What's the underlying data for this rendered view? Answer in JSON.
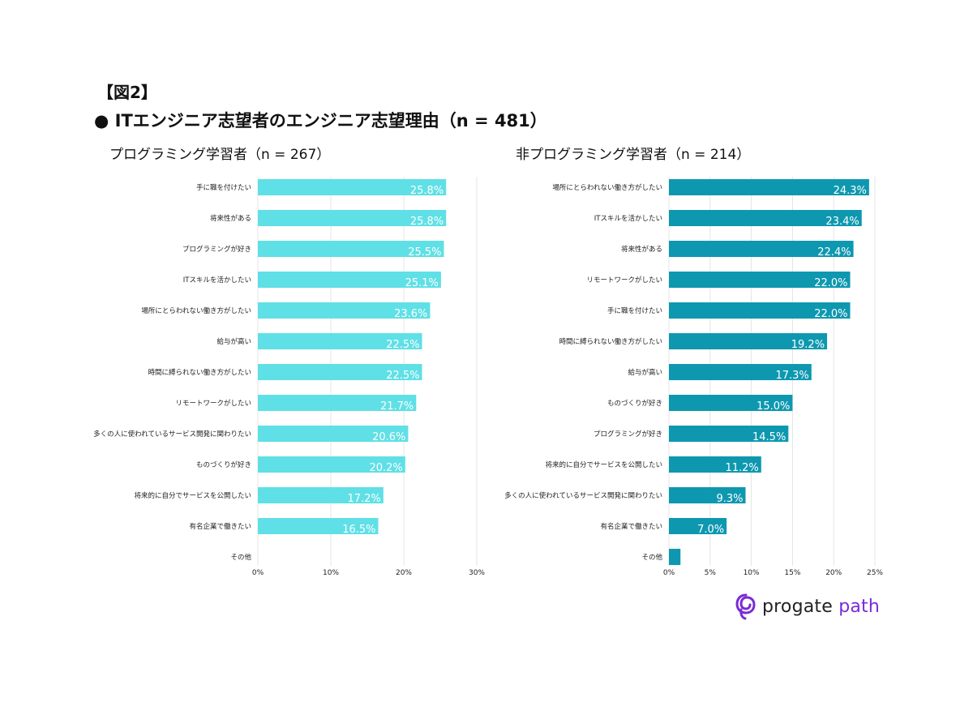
{
  "figure_label": "【図2】",
  "main_title": "● ITエンジニア志望者のエンジニア志望理由（n = 481）",
  "logo": {
    "part1": "progate",
    "part2": "path",
    "icon": "progate-logo-icon",
    "accent_color": "#7a2bd6"
  },
  "chart_data": [
    {
      "type": "bar",
      "orientation": "horizontal",
      "title": "プログラミング学習者（n = 267）",
      "color": "#5fe0e6",
      "label_color": "#ffffff",
      "xlim": [
        0,
        30
      ],
      "xticks": [
        0,
        10,
        20,
        30
      ],
      "xtick_labels": [
        "0%",
        "10%",
        "20%",
        "30%"
      ],
      "grid": true,
      "categories": [
        "手に職を付けたい",
        "将来性がある",
        "プログラミングが好き",
        "ITスキルを活かしたい",
        "場所にとらわれない働き方がしたい",
        "給与が高い",
        "時間に縛られない働き方がしたい",
        "リモートワークがしたい",
        "多くの人に使われているサービス開発に関わりたい",
        "ものづくりが好き",
        "将来的に自分でサービスを公開したい",
        "有名企業で働きたい",
        "その他"
      ],
      "values": [
        25.8,
        25.8,
        25.5,
        25.1,
        23.6,
        22.5,
        22.5,
        21.7,
        20.6,
        20.2,
        17.2,
        16.5,
        0
      ],
      "value_labels": [
        "25.8%",
        "25.8%",
        "25.5%",
        "25.1%",
        "23.6%",
        "22.5%",
        "22.5%",
        "21.7%",
        "20.6%",
        "20.2%",
        "17.2%",
        "16.5%",
        ""
      ]
    },
    {
      "type": "bar",
      "orientation": "horizontal",
      "title": "非プログラミング学習者（n = 214）",
      "color": "#0e98b0",
      "label_color": "#ffffff",
      "xlim": [
        0,
        25
      ],
      "xticks": [
        0,
        5,
        10,
        15,
        20,
        25
      ],
      "xtick_labels": [
        "0%",
        "5%",
        "10%",
        "15%",
        "20%",
        "25%"
      ],
      "grid": true,
      "categories": [
        "場所にとらわれない働き方がしたい",
        "ITスキルを活かしたい",
        "将来性がある",
        "リモートワークがしたい",
        "手に職を付けたい",
        "時間に縛られない働き方がしたい",
        "給与が高い",
        "ものづくりが好き",
        "プログラミングが好き",
        "将来的に自分でサービスを公開したい",
        "多くの人に使われているサービス開発に関わりたい",
        "有名企業で働きたい",
        "その他"
      ],
      "values": [
        24.3,
        23.4,
        22.4,
        22.0,
        22.0,
        19.2,
        17.3,
        15.0,
        14.5,
        11.2,
        9.3,
        7.0,
        1.4
      ],
      "value_labels": [
        "24.3%",
        "23.4%",
        "22.4%",
        "22.0%",
        "22.0%",
        "19.2%",
        "17.3%",
        "15.0%",
        "14.5%",
        "11.2%",
        "9.3%",
        "7.0%",
        ""
      ]
    }
  ]
}
